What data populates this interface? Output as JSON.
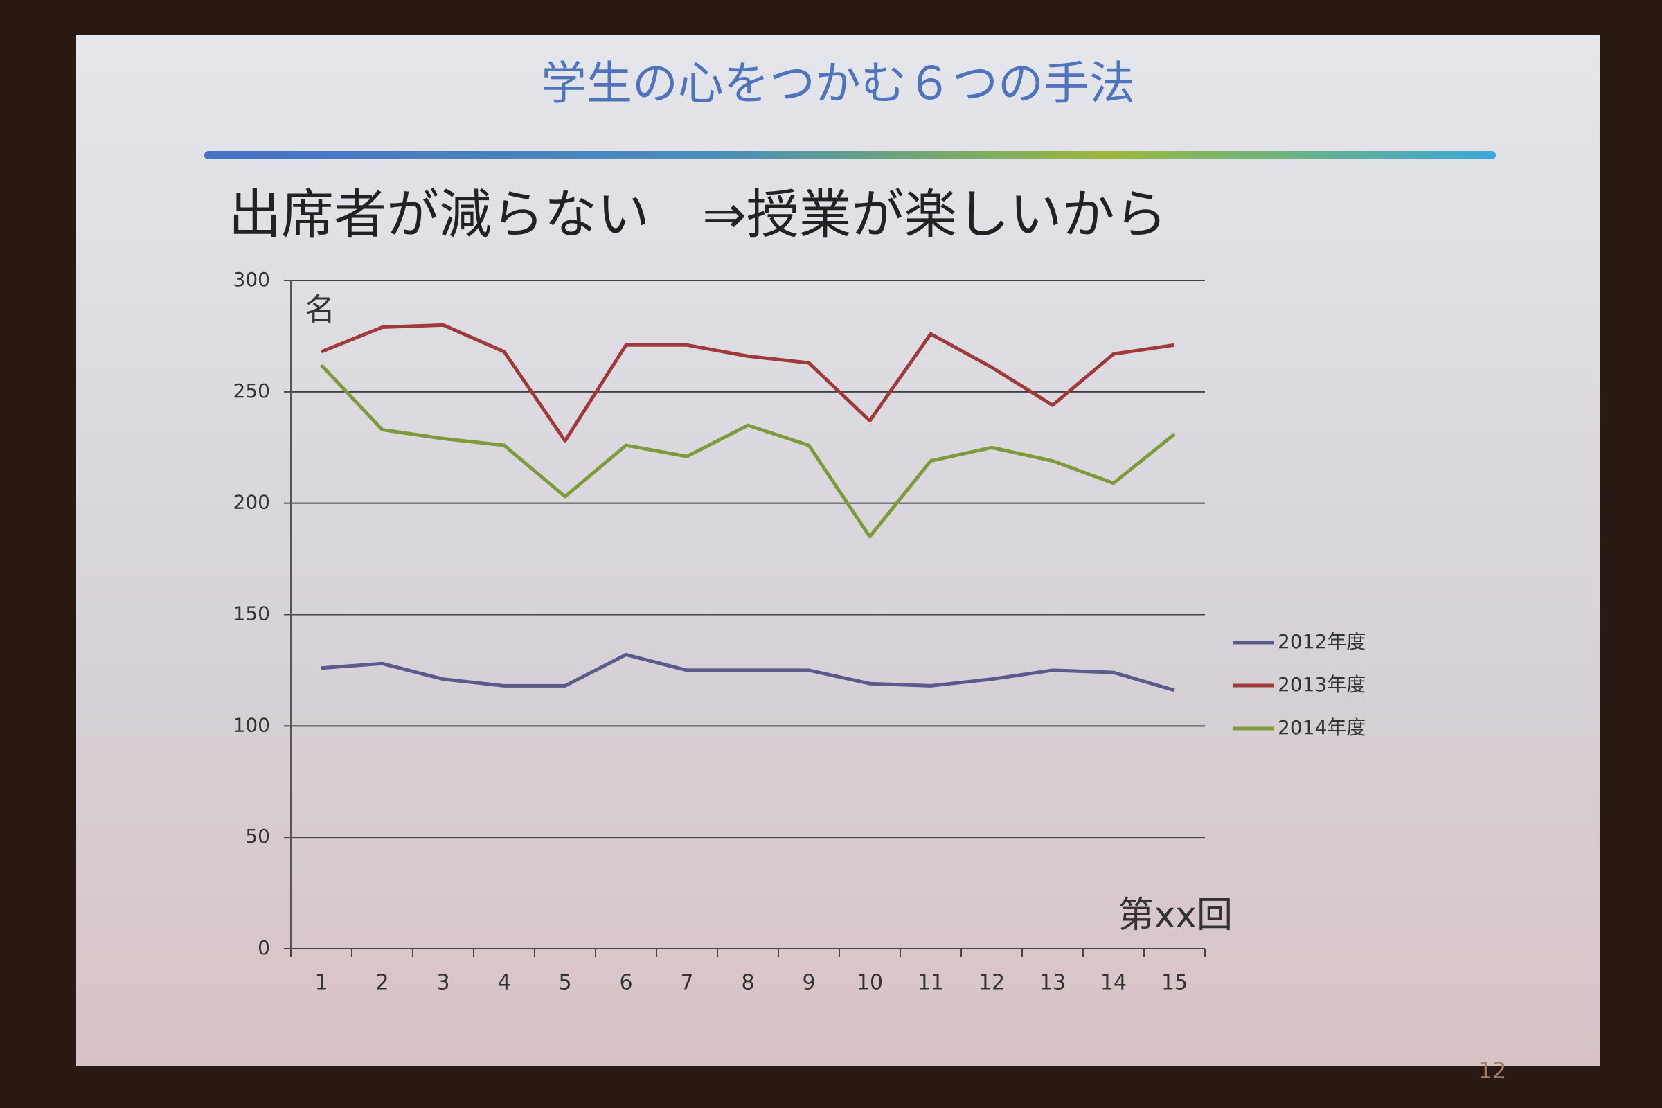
{
  "slide": {
    "title": "学生の心をつかむ６つの手法",
    "subtitle": "出席者が減らない　⇒授業が楽しいから",
    "page": "12"
  },
  "chart_data": {
    "type": "line",
    "ylabel": "名",
    "xlabel": "第xx回",
    "categories": [
      "1",
      "2",
      "3",
      "4",
      "5",
      "6",
      "7",
      "8",
      "9",
      "10",
      "11",
      "12",
      "13",
      "14",
      "15"
    ],
    "series": [
      {
        "name": "2012年度",
        "color": "#5b5a8c",
        "values": [
          126,
          128,
          121,
          118,
          118,
          132,
          125,
          125,
          125,
          119,
          118,
          121,
          125,
          124,
          116
        ]
      },
      {
        "name": "2013年度",
        "color": "#a03a3a",
        "values": [
          268,
          279,
          280,
          268,
          228,
          271,
          271,
          266,
          263,
          237,
          276,
          261,
          244,
          267,
          271
        ]
      },
      {
        "name": "2014年度",
        "color": "#7f9a3a",
        "values": [
          262,
          233,
          229,
          226,
          203,
          226,
          221,
          235,
          226,
          185,
          219,
          225,
          219,
          209,
          231
        ]
      }
    ],
    "ylim": [
      0,
      300
    ],
    "yticks": [
      0,
      50,
      100,
      150,
      200,
      250,
      300
    ],
    "grid": true,
    "legend": "right"
  }
}
